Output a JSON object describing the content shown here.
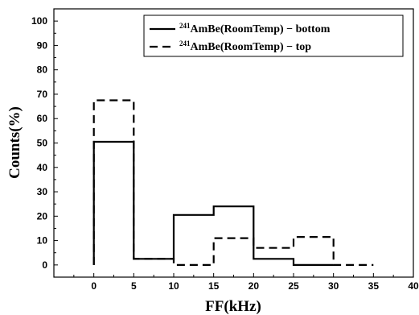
{
  "chart_data": {
    "type": "line",
    "step": true,
    "xlabel": "FF(kHz)",
    "ylabel": "Counts(%)",
    "xlim": [
      -5,
      40
    ],
    "ylim": [
      -5,
      105
    ],
    "xticks": [
      0,
      5,
      10,
      15,
      20,
      25,
      30,
      35,
      40
    ],
    "yticks": [
      0,
      10,
      20,
      30,
      40,
      50,
      60,
      70,
      80,
      90,
      100
    ],
    "grid": false,
    "legend_position": "top-right",
    "series": [
      {
        "name_prefix": "241",
        "name": "AmBe(RoomTemp) − bottom",
        "line_style": "solid",
        "bins": [
          [
            0,
            5
          ],
          [
            5,
            10
          ],
          [
            10,
            15
          ],
          [
            15,
            20
          ],
          [
            20,
            25
          ],
          [
            25,
            30
          ]
        ],
        "values": [
          50.5,
          2.5,
          20.5,
          24,
          2.5,
          0
        ]
      },
      {
        "name_prefix": "241",
        "name": "AmBe(RoomTemp) − top",
        "line_style": "dashed",
        "bins": [
          [
            0,
            5
          ],
          [
            5,
            10
          ],
          [
            10,
            15
          ],
          [
            15,
            20
          ],
          [
            20,
            25
          ],
          [
            25,
            30
          ],
          [
            30,
            35
          ]
        ],
        "values": [
          67.5,
          2.5,
          0,
          11,
          7,
          11.5,
          0
        ]
      }
    ]
  }
}
